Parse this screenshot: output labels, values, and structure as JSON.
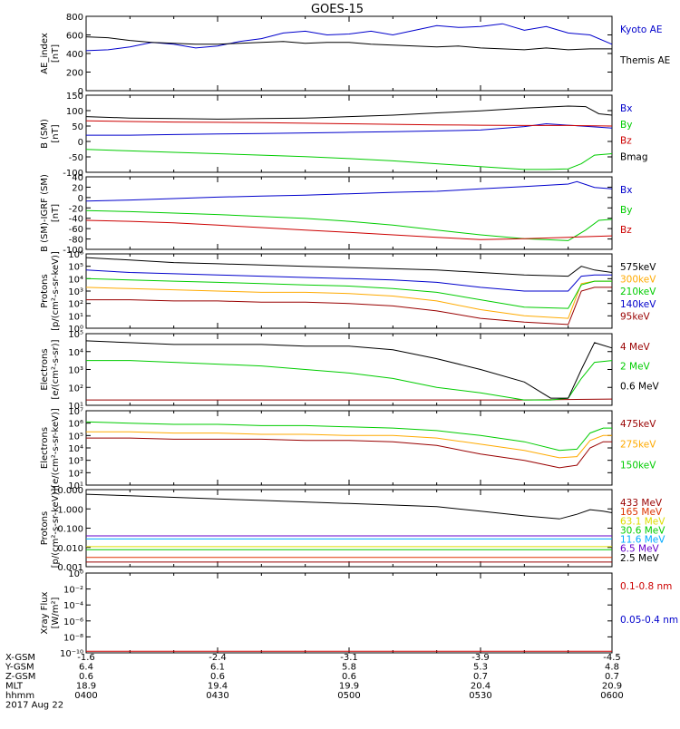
{
  "title": "GOES-15",
  "footer": {
    "rows": [
      {
        "label": "X-GSM",
        "values": [
          "-1.6",
          "-2.4",
          "-3.1",
          "-3.9",
          "-4.5"
        ]
      },
      {
        "label": "Y-GSM",
        "values": [
          "6.4",
          "6.1",
          "5.8",
          "5.3",
          "4.8"
        ]
      },
      {
        "label": "Z-GSM",
        "values": [
          "0.6",
          "0.6",
          "0.6",
          "0.7",
          "0.7"
        ]
      },
      {
        "label": "MLT",
        "values": [
          "18.9",
          "19.4",
          "19.9",
          "20.4",
          "20.9"
        ]
      },
      {
        "label": "hhmm",
        "values": [
          "0400",
          "0430",
          "0500",
          "0530",
          "0600"
        ]
      }
    ],
    "date": "2017 Aug 22"
  },
  "chart_data": [
    {
      "type": "line",
      "ylabel": "AE_index\n[nT]",
      "ylim": [
        0,
        800
      ],
      "scale": "linear",
      "ticks": [
        "0",
        "200",
        "400",
        "600",
        "800"
      ],
      "series": [
        {
          "name": "Kyoto AE",
          "color": "#0000cc",
          "x": [
            0,
            5,
            10,
            15,
            20,
            25,
            30,
            35,
            40,
            45,
            50,
            55,
            60,
            65,
            70,
            75,
            80,
            85,
            90,
            95,
            100,
            105,
            110,
            115,
            120
          ],
          "y": [
            430,
            440,
            470,
            520,
            500,
            460,
            480,
            530,
            560,
            620,
            640,
            600,
            610,
            640,
            600,
            650,
            700,
            680,
            690,
            720,
            650,
            690,
            620,
            600,
            500
          ]
        },
        {
          "name": "Themis AE",
          "color": "#000000",
          "x": [
            0,
            5,
            10,
            15,
            20,
            25,
            30,
            35,
            40,
            45,
            50,
            55,
            60,
            65,
            70,
            75,
            80,
            85,
            90,
            95,
            100,
            105,
            110,
            115,
            120
          ],
          "y": [
            580,
            570,
            540,
            520,
            510,
            500,
            500,
            510,
            520,
            530,
            510,
            520,
            520,
            500,
            490,
            480,
            470,
            480,
            460,
            450,
            440,
            460,
            440,
            450,
            450
          ]
        }
      ]
    },
    {
      "type": "line",
      "ylabel": "B (SM)\n[nT]",
      "ylim": [
        -120,
        150
      ],
      "scale": "linear",
      "ticks": [
        "-100",
        "-50",
        "0",
        "50",
        "100",
        "150"
      ],
      "series": [
        {
          "name": "Bx",
          "color": "#0000cc",
          "x": [
            0,
            10,
            20,
            30,
            40,
            50,
            60,
            70,
            80,
            90,
            100,
            105,
            110,
            115,
            120
          ],
          "y": [
            10,
            10,
            12,
            14,
            16,
            18,
            20,
            22,
            25,
            28,
            40,
            50,
            45,
            40,
            35
          ]
        },
        {
          "name": "By",
          "color": "#00cc00",
          "x": [
            0,
            10,
            20,
            30,
            40,
            50,
            60,
            70,
            80,
            90,
            100,
            105,
            110,
            113,
            116,
            120
          ],
          "y": [
            -40,
            -45,
            -50,
            -55,
            -60,
            -65,
            -72,
            -80,
            -90,
            -100,
            -110,
            -110,
            -108,
            -90,
            -60,
            -55
          ]
        },
        {
          "name": "Bz",
          "color": "#cc0000",
          "x": [
            0,
            10,
            20,
            30,
            40,
            50,
            60,
            70,
            80,
            90,
            100,
            110,
            120
          ],
          "y": [
            60,
            58,
            56,
            55,
            54,
            52,
            50,
            48,
            46,
            45,
            44,
            44,
            42
          ]
        },
        {
          "name": "Bmag",
          "color": "#000000",
          "x": [
            0,
            10,
            20,
            30,
            40,
            50,
            60,
            70,
            80,
            90,
            100,
            110,
            114,
            117,
            120
          ],
          "y": [
            75,
            70,
            68,
            66,
            68,
            70,
            75,
            80,
            88,
            95,
            105,
            112,
            110,
            85,
            80
          ]
        }
      ]
    },
    {
      "type": "line",
      "ylabel": "B (SM)-IGRF (SM)\n[nT]",
      "ylim": [
        -100,
        50
      ],
      "scale": "linear",
      "ticks": [
        "-100",
        "-80",
        "-60",
        "-40",
        "-20",
        "0",
        "20",
        "40"
      ],
      "series": [
        {
          "name": "Bx",
          "color": "#0000cc",
          "x": [
            0,
            10,
            20,
            30,
            40,
            50,
            60,
            70,
            80,
            90,
            100,
            110,
            112,
            116,
            120
          ],
          "y": [
            0,
            2,
            5,
            8,
            10,
            12,
            15,
            18,
            20,
            25,
            30,
            35,
            40,
            28,
            25
          ]
        },
        {
          "name": "By",
          "color": "#00cc00",
          "x": [
            0,
            10,
            20,
            30,
            40,
            50,
            60,
            70,
            80,
            90,
            100,
            110,
            114,
            117,
            120
          ],
          "y": [
            -20,
            -22,
            -25,
            -28,
            -32,
            -36,
            -42,
            -50,
            -60,
            -70,
            -78,
            -82,
            -60,
            -40,
            -38
          ]
        },
        {
          "name": "Bz",
          "color": "#cc0000",
          "x": [
            0,
            10,
            20,
            30,
            40,
            50,
            60,
            70,
            80,
            90,
            100,
            110,
            120
          ],
          "y": [
            -40,
            -42,
            -45,
            -50,
            -55,
            -60,
            -65,
            -70,
            -75,
            -80,
            -78,
            -75,
            -72
          ]
        }
      ]
    },
    {
      "type": "line",
      "ylabel": "Protons\n[p/(cm²-s-sr-keV)]",
      "ylim": [
        0,
        6
      ],
      "scale": "log",
      "ticks": [
        "10⁰",
        "10¹",
        "10²",
        "10³",
        "10⁴",
        "10⁵",
        "10⁶"
      ],
      "series": [
        {
          "name": "575keV",
          "color": "#000000",
          "x": [
            0,
            10,
            20,
            30,
            40,
            50,
            60,
            70,
            80,
            90,
            100,
            110,
            113,
            116,
            120
          ],
          "y": [
            5.7,
            5.5,
            5.3,
            5.2,
            5.1,
            5.0,
            4.9,
            4.8,
            4.7,
            4.5,
            4.3,
            4.2,
            5.0,
            4.7,
            4.5
          ]
        },
        {
          "name": "300keV",
          "color": "#ffaa00",
          "x": [
            0,
            10,
            20,
            30,
            40,
            50,
            60,
            70,
            80,
            90,
            100,
            110,
            113,
            116,
            120
          ],
          "y": [
            3.3,
            3.2,
            3.1,
            3.0,
            2.9,
            2.9,
            2.8,
            2.6,
            2.2,
            1.5,
            1.0,
            0.8,
            3.6,
            3.8,
            3.8
          ]
        },
        {
          "name": "210keV",
          "color": "#00cc00",
          "x": [
            0,
            10,
            20,
            30,
            40,
            50,
            60,
            70,
            80,
            90,
            100,
            110,
            113,
            116,
            120
          ],
          "y": [
            4.0,
            3.9,
            3.8,
            3.7,
            3.6,
            3.5,
            3.4,
            3.2,
            2.9,
            2.3,
            1.7,
            1.6,
            3.5,
            3.8,
            3.8
          ]
        },
        {
          "name": "140keV",
          "color": "#0000cc",
          "x": [
            0,
            10,
            20,
            30,
            40,
            50,
            60,
            70,
            80,
            90,
            100,
            110,
            113,
            116,
            120
          ],
          "y": [
            4.7,
            4.5,
            4.4,
            4.3,
            4.2,
            4.1,
            4.0,
            3.9,
            3.7,
            3.3,
            3.0,
            3.0,
            4.2,
            4.3,
            4.3
          ]
        },
        {
          "name": "95keV",
          "color": "#990000",
          "x": [
            0,
            10,
            20,
            30,
            40,
            50,
            60,
            70,
            80,
            90,
            100,
            110,
            113,
            116,
            120
          ],
          "y": [
            2.3,
            2.3,
            2.2,
            2.2,
            2.1,
            2.1,
            2.0,
            1.8,
            1.4,
            0.8,
            0.5,
            0.3,
            3.0,
            3.3,
            3.3
          ]
        }
      ]
    },
    {
      "type": "line",
      "ylabel": "Electrons\n[e/(cm²-s-sr)]",
      "ylim": [
        1,
        5
      ],
      "scale": "log",
      "ticks": [
        "10¹",
        "10²",
        "10³",
        "10⁴",
        "10⁵"
      ],
      "series": [
        {
          "name": "4 MeV",
          "color": "#990000",
          "x": [
            0,
            20,
            40,
            60,
            80,
            100,
            120
          ],
          "y": [
            1.3,
            1.3,
            1.3,
            1.3,
            1.3,
            1.3,
            1.35
          ]
        },
        {
          "name": "2 MeV",
          "color": "#00cc00",
          "x": [
            0,
            10,
            20,
            30,
            40,
            50,
            60,
            70,
            80,
            90,
            100,
            106,
            110,
            113,
            116,
            120
          ],
          "y": [
            3.5,
            3.5,
            3.4,
            3.3,
            3.2,
            3.0,
            2.8,
            2.5,
            2.0,
            1.7,
            1.3,
            1.3,
            1.4,
            2.5,
            3.4,
            3.5
          ]
        },
        {
          "name": "0.6 MeV",
          "color": "#000000",
          "x": [
            0,
            10,
            20,
            30,
            40,
            50,
            60,
            70,
            80,
            90,
            100,
            106,
            110,
            113,
            116,
            120
          ],
          "y": [
            4.6,
            4.5,
            4.4,
            4.4,
            4.4,
            4.3,
            4.3,
            4.1,
            3.6,
            3.0,
            2.3,
            1.4,
            1.4,
            3.0,
            4.5,
            4.2
          ]
        }
      ]
    },
    {
      "type": "line",
      "ylabel": "Electrons\n[e/(cm²-s-sr-keV)]",
      "ylim": [
        1,
        7
      ],
      "scale": "log",
      "ticks": [
        "10¹",
        "10²",
        "10³",
        "10⁴",
        "10⁵",
        "10⁶",
        "10⁷"
      ],
      "series": [
        {
          "name": "475keV",
          "color": "#990000",
          "x": [
            0,
            10,
            20,
            30,
            40,
            50,
            60,
            70,
            80,
            90,
            100,
            108,
            112,
            115,
            118,
            120
          ],
          "y": [
            4.8,
            4.8,
            4.7,
            4.7,
            4.7,
            4.6,
            4.6,
            4.5,
            4.2,
            3.5,
            3.0,
            2.4,
            2.6,
            4.0,
            4.5,
            4.5
          ]
        },
        {
          "name": "275keV",
          "color": "#ffaa00",
          "x": [
            0,
            10,
            20,
            30,
            40,
            50,
            60,
            70,
            80,
            90,
            100,
            108,
            112,
            115,
            118,
            120
          ],
          "y": [
            5.3,
            5.3,
            5.2,
            5.2,
            5.1,
            5.1,
            5.0,
            5.0,
            4.8,
            4.3,
            3.8,
            3.2,
            3.3,
            4.6,
            5.0,
            5.0
          ]
        },
        {
          "name": "150keV",
          "color": "#00cc00",
          "x": [
            0,
            10,
            20,
            30,
            40,
            50,
            60,
            70,
            80,
            90,
            100,
            108,
            112,
            115,
            118,
            120
          ],
          "y": [
            6.1,
            6.0,
            5.9,
            5.9,
            5.8,
            5.8,
            5.7,
            5.6,
            5.4,
            5.0,
            4.5,
            3.8,
            3.9,
            5.2,
            5.6,
            5.6
          ]
        }
      ]
    },
    {
      "type": "line",
      "ylabel": "Protons\n[p/(cm²-s-sr-keV)]",
      "ylim": [
        -3,
        2
      ],
      "scale": "log",
      "ticks": [
        "0.001",
        "0.010",
        "0.100",
        "1.000",
        "10.000"
      ],
      "series": [
        {
          "name": "433 MeV",
          "color": "#990000",
          "x": [
            0,
            120
          ],
          "y": [
            -2.7,
            -2.7
          ]
        },
        {
          "name": "165 MeV",
          "color": "#dd3300",
          "x": [
            0,
            120
          ],
          "y": [
            -2.4,
            -2.4
          ]
        },
        {
          "name": "63.1 MeV",
          "color": "#dddd00",
          "x": [
            0,
            120
          ],
          "y": [
            -1.7,
            -1.7
          ]
        },
        {
          "name": "30.6 MeV",
          "color": "#00cc00",
          "x": [
            0,
            120
          ],
          "y": [
            -1.9,
            -1.9
          ]
        },
        {
          "name": "11.6 MeV",
          "color": "#00aaff",
          "x": [
            0,
            120
          ],
          "y": [
            -1.2,
            -1.2
          ]
        },
        {
          "name": "6.5 MeV",
          "color": "#6600cc",
          "x": [
            0,
            120
          ],
          "y": [
            -1.0,
            -1.0
          ]
        },
        {
          "name": "2.5 MeV",
          "color": "#000000",
          "x": [
            0,
            10,
            20,
            30,
            40,
            50,
            60,
            70,
            80,
            90,
            100,
            108,
            112,
            115,
            118,
            120
          ],
          "y": [
            1.7,
            1.6,
            1.5,
            1.4,
            1.3,
            1.2,
            1.1,
            1.0,
            0.9,
            0.6,
            0.3,
            0.1,
            0.4,
            0.7,
            0.6,
            0.5
          ]
        }
      ]
    },
    {
      "type": "line",
      "ylabel": "Xray Flux\n[W/m²]",
      "ylim": [
        -10,
        0
      ],
      "scale": "log",
      "ticks": [
        "10⁻¹⁰",
        "10⁻⁸",
        "10⁻⁶",
        "10⁻⁴",
        "10⁻²",
        "10⁰"
      ],
      "series": [
        {
          "name": "0.1-0.8 nm",
          "color": "#cc0000",
          "x": [
            0,
            120
          ],
          "y": [
            -9.8,
            -9.8
          ]
        },
        {
          "name": "0.05-0.4 nm",
          "color": "#0000cc",
          "x": [],
          "y": []
        }
      ]
    }
  ]
}
